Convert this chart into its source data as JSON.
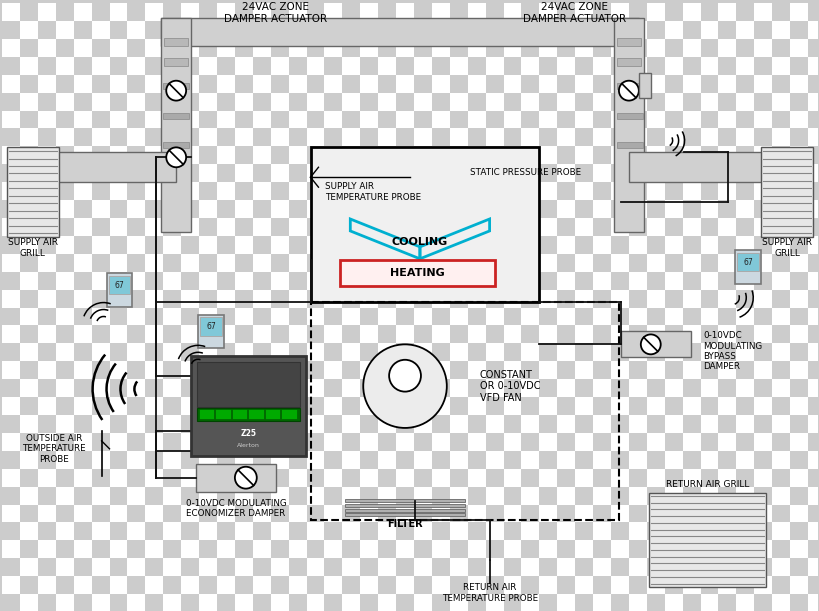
{
  "bg_checker_light": "#ffffff",
  "bg_checker_dark": "#cccccc",
  "duct_fill": "#d8d8d8",
  "duct_edge": "#555555",
  "ahu_fill": "#eeeeee",
  "grill_fill": "#e0e0e0",
  "cooling_color": "#00b0d0",
  "heating_color": "#cc2222",
  "heating_fill": "#fff0f0",
  "label_color": "#111111",
  "wire_color": "#000000",
  "labels": {
    "damp_act_left": "24VAC ZONE\nDAMPER ACTUATOR",
    "damp_act_right": "24VAC ZONE\nDAMPER ACTUATOR",
    "supply_grill_left": "SUPPLY AIR\nGRILL",
    "supply_grill_right": "SUPPLY AIR\nGRILL",
    "static_pressure": "STATIC PRESSURE PROBE",
    "supply_air_temp": "SUPPLY AIR\nTEMPERATURE PROBE",
    "cooling": "COOLING",
    "heating": "HEATING",
    "vfd_fan": "CONSTANT\nOR 0-10VDC\nVFD FAN",
    "bypass": "0-10VDC\nMODULATING\nBYPASS\nDAMPER",
    "filter": "FILTER",
    "return_grill": "RETURN AIR GRILL",
    "return_temp": "RETURN AIR\nTEMPERATURE PROBE",
    "outside_temp": "OUTSIDE AIR\nTEMPERATURE\nPROBE",
    "economizer": "0-10VDC MODULATING\nECONOMIZER DAMPER"
  }
}
